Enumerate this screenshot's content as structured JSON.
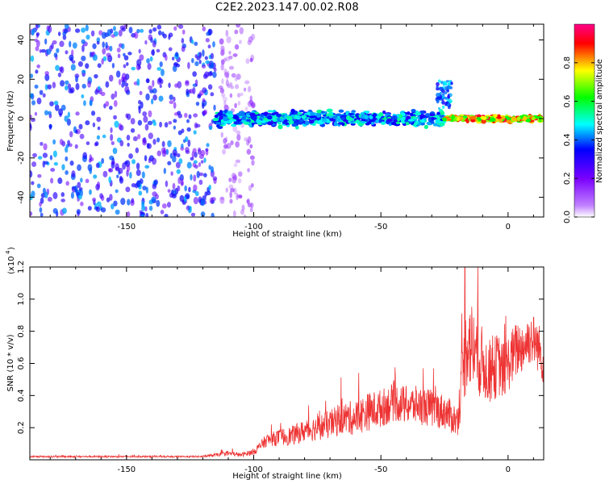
{
  "figure": {
    "title": "C2E2.2023.147.00.02.R08"
  },
  "chart_data": [
    {
      "type": "heatmap",
      "title": "C2E2.2023.147.00.02.R08",
      "xlabel": "Height of straight line (km)",
      "ylabel": "Frequency (Hz)",
      "xlim": [
        -188,
        14
      ],
      "ylim": [
        -50,
        48
      ],
      "xticks": [
        -150,
        -100,
        -50,
        0
      ],
      "yticks": [
        -40,
        -20,
        0,
        20,
        40
      ],
      "colorbar": {
        "label": "Normalized spectral amplitude",
        "range": [
          0,
          1
        ],
        "ticks": [
          0.0,
          0.2,
          0.4,
          0.6,
          0.8
        ],
        "colormap": "rainbow (white-purple-blue-cyan-green-yellow-red-magenta)",
        "colors": [
          "#ffffff",
          "#8800ff",
          "#0000ff",
          "#00ffff",
          "#00ff00",
          "#ffff00",
          "#ff0000",
          "#ff0088"
        ]
      },
      "features": [
        {
          "region": "noise",
          "x_range": [
            -188,
            -115
          ],
          "freq_range": [
            -50,
            48
          ],
          "amplitude": "0.2-0.45"
        },
        {
          "region": "noise",
          "x_range": [
            -113,
            -100
          ],
          "freq_range": [
            -50,
            48
          ],
          "amplitude": "0.05-0.2"
        },
        {
          "region": "signal band",
          "x_range": [
            -115,
            -25
          ],
          "freq_center": 0,
          "freq_halfwidth": 5,
          "amplitude": "0.3-0.55"
        },
        {
          "region": "signal band",
          "x_range": [
            -25,
            14
          ],
          "freq_center": 0,
          "freq_halfwidth": 2,
          "amplitude": "0.6-0.95"
        },
        {
          "region": "blob",
          "x_range": [
            -28,
            -22
          ],
          "freq_range": [
            5,
            20
          ],
          "amplitude": "0.3-0.5"
        }
      ]
    },
    {
      "type": "line",
      "xlabel": "Height of straight line (km)",
      "ylabel": "SNR (10 * v/v)",
      "y_multiplier": "(x10^4)",
      "xlim": [
        -188,
        14
      ],
      "ylim": [
        0,
        1.2
      ],
      "xticks": [
        -150,
        -100,
        -50,
        0
      ],
      "yticks": [
        0.2,
        0.4,
        0.6,
        0.8,
        1.0,
        1.2
      ],
      "color": "#ee3333",
      "x": [
        -188,
        -120,
        -115,
        -110,
        -105,
        -100,
        -95,
        -90,
        -85,
        -80,
        -75,
        -70,
        -65,
        -60,
        -55,
        -50,
        -45,
        -40,
        -35,
        -30,
        -25,
        -20,
        -18,
        -16,
        -14,
        -12,
        -10,
        -8,
        -6,
        -4,
        -2,
        0,
        2,
        4,
        6,
        8,
        10,
        12,
        14
      ],
      "y": [
        0.02,
        0.02,
        0.03,
        0.04,
        0.03,
        0.05,
        0.12,
        0.14,
        0.15,
        0.18,
        0.2,
        0.22,
        0.26,
        0.26,
        0.3,
        0.32,
        0.36,
        0.34,
        0.34,
        0.32,
        0.3,
        0.24,
        0.5,
        0.75,
        0.7,
        0.65,
        0.6,
        0.55,
        0.55,
        0.6,
        0.55,
        0.6,
        0.65,
        0.7,
        0.7,
        0.75,
        0.75,
        0.7,
        0.6
      ],
      "y_spread": [
        0.005,
        0.005,
        0.01,
        0.015,
        0.012,
        0.02,
        0.04,
        0.05,
        0.06,
        0.07,
        0.08,
        0.09,
        0.1,
        0.11,
        0.12,
        0.12,
        0.12,
        0.12,
        0.12,
        0.12,
        0.11,
        0.1,
        0.2,
        0.3,
        0.28,
        0.26,
        0.22,
        0.2,
        0.2,
        0.2,
        0.18,
        0.18,
        0.18,
        0.18,
        0.16,
        0.16,
        0.16,
        0.16,
        0.14
      ],
      "peak": {
        "x": -17,
        "y": 1.2
      }
    }
  ]
}
